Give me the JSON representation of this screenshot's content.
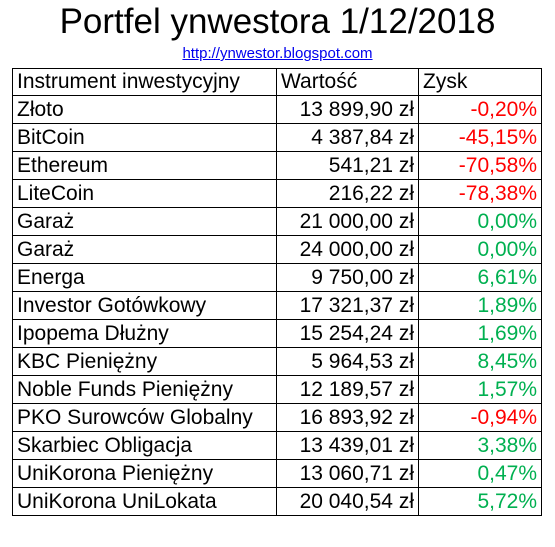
{
  "title": "Portfel ynwestora 1/12/2018",
  "link": "http://ynwestor.blogspot.com",
  "colors": {
    "negative": "#ff0000",
    "positive": "#00b050",
    "link": "#0000ee"
  },
  "table": {
    "headers": [
      "Instrument inwestycyjny",
      "Wartość",
      "Zysk"
    ],
    "rows": [
      {
        "name": "Złoto",
        "value": "13 899,90 zł",
        "profit": "-0,20%",
        "sign": "neg"
      },
      {
        "name": "BitCoin",
        "value": "4 387,84 zł",
        "profit": "-45,15%",
        "sign": "neg"
      },
      {
        "name": "Ethereum",
        "value": "541,21 zł",
        "profit": "-70,58%",
        "sign": "neg"
      },
      {
        "name": "LiteCoin",
        "value": "216,22 zł",
        "profit": "-78,38%",
        "sign": "neg"
      },
      {
        "name": "Garaż",
        "value": "21 000,00 zł",
        "profit": "0,00%",
        "sign": "pos"
      },
      {
        "name": "Garaż",
        "value": "24 000,00 zł",
        "profit": "0,00%",
        "sign": "pos"
      },
      {
        "name": "Energa",
        "value": "9 750,00 zł",
        "profit": "6,61%",
        "sign": "pos"
      },
      {
        "name": "Investor Gotówkowy",
        "value": "17 321,37 zł",
        "profit": "1,89%",
        "sign": "pos"
      },
      {
        "name": "Ipopema Dłużny",
        "value": "15 254,24 zł",
        "profit": "1,69%",
        "sign": "pos"
      },
      {
        "name": "KBC Pieniężny",
        "value": "5 964,53 zł",
        "profit": "8,45%",
        "sign": "pos"
      },
      {
        "name": "Noble Funds Pieniężny",
        "value": "12 189,57 zł",
        "profit": "1,57%",
        "sign": "pos"
      },
      {
        "name": "PKO Surowców Globalny",
        "value": "16 893,92 zł",
        "profit": "-0,94%",
        "sign": "neg"
      },
      {
        "name": "Skarbiec Obligacja",
        "value": "13 439,01 zł",
        "profit": "3,38%",
        "sign": "pos"
      },
      {
        "name": "UniKorona Pieniężny",
        "value": "13 060,71 zł",
        "profit": "0,47%",
        "sign": "pos"
      },
      {
        "name": "UniKorona UniLokata",
        "value": "20 040,54 zł",
        "profit": "5,72%",
        "sign": "pos"
      }
    ]
  }
}
